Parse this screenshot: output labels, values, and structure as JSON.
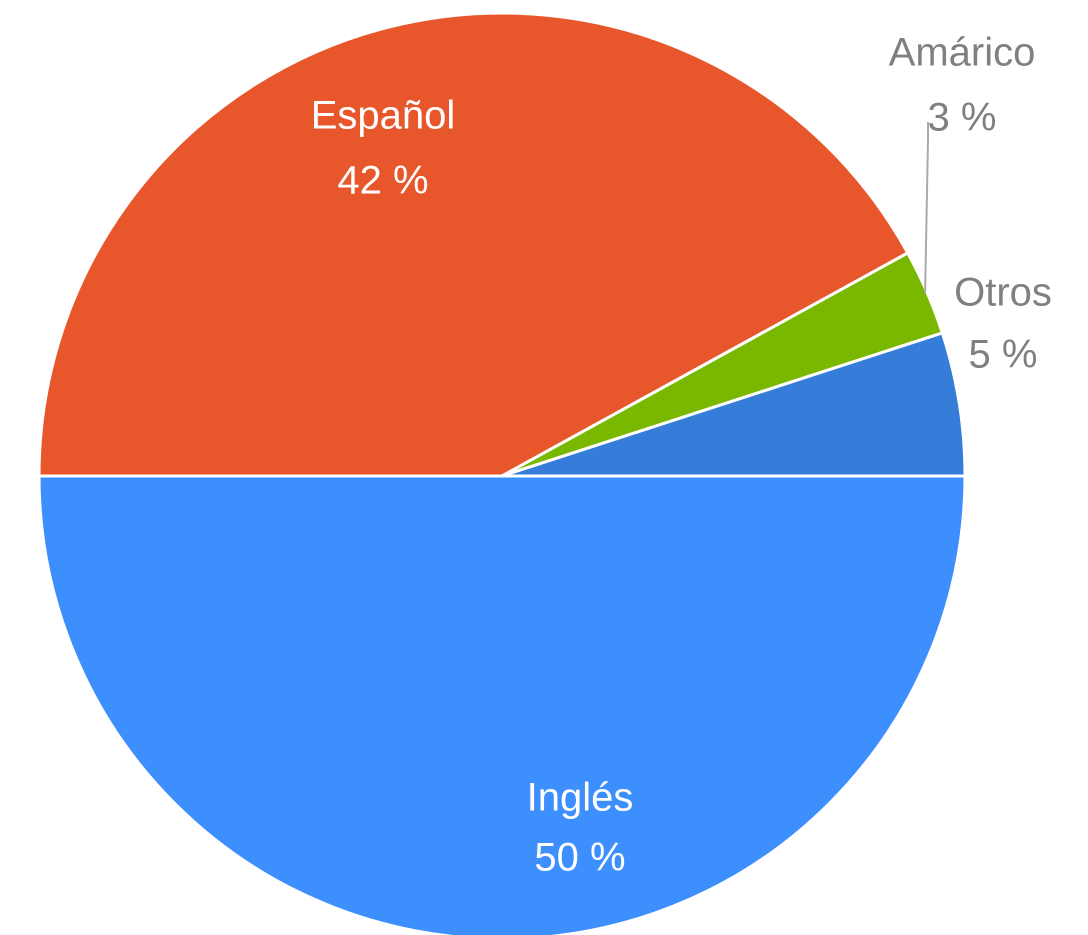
{
  "chart_data": {
    "type": "pie",
    "categories": [
      "Inglés",
      "Español",
      "Amárico",
      "Otros"
    ],
    "values": [
      50,
      42,
      3,
      5
    ],
    "value_labels": [
      "50 %",
      "42 %",
      "3 %",
      "5 %"
    ],
    "colors": [
      "#3d8ffd",
      "#e8572b",
      "#7ab800",
      "#357dd8"
    ]
  }
}
